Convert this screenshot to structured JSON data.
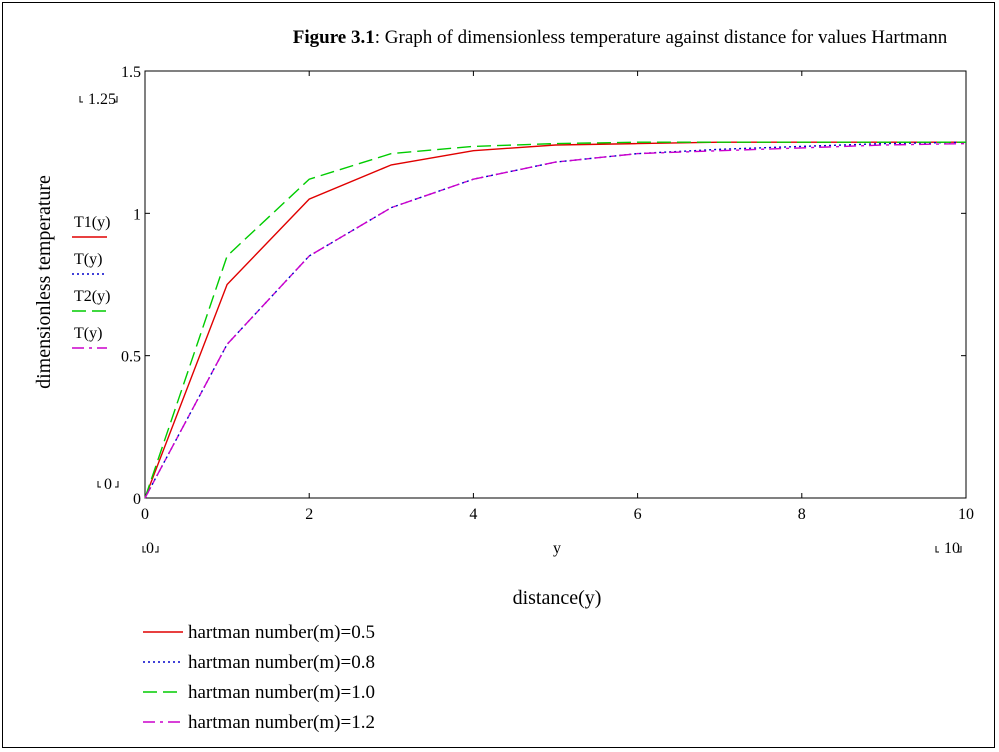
{
  "figure": {
    "caption_bold": "Figure 3.1",
    "caption_rest": ": Graph of dimensionless temperature against distance for values Hartmann"
  },
  "chart_data": {
    "type": "line",
    "title": "",
    "xlabel": "distance(y)",
    "ylabel": "dimensionless temperature",
    "x_variable_label": "y",
    "xlim": [
      0,
      10
    ],
    "ylim": [
      0,
      1.5
    ],
    "xticks": [
      "0",
      "2",
      "4",
      "6",
      "8",
      "10"
    ],
    "yticks": [
      "0",
      "0.5",
      "1",
      "1.5"
    ],
    "x_range_markers": [
      "0",
      "10"
    ],
    "y_range_markers": [
      "0",
      "1.25"
    ],
    "grid": false,
    "legend_position": "bottom-left",
    "series": [
      {
        "name": "hartman number(m)=0.5",
        "trace_label": "T1(y)",
        "color": "#e00000",
        "dash": "solid",
        "x": [
          0,
          1,
          2,
          3,
          4,
          5,
          6,
          7,
          8,
          9,
          10
        ],
        "y": [
          0,
          0.75,
          1.05,
          1.17,
          1.22,
          1.24,
          1.245,
          1.25,
          1.25,
          1.25,
          1.25
        ]
      },
      {
        "name": "hartman number(m)=0.8",
        "trace_label": "T(y)",
        "color": "#0000cc",
        "dash": "dot",
        "x": [
          0,
          1,
          2,
          3,
          4,
          5,
          6,
          7,
          8,
          9,
          10
        ],
        "y": [
          0,
          0.54,
          0.85,
          1.02,
          1.12,
          1.18,
          1.21,
          1.225,
          1.235,
          1.245,
          1.25
        ]
      },
      {
        "name": "hartman number(m)=1.0",
        "trace_label": "T2(y)",
        "color": "#00cc00",
        "dash": "dash",
        "x": [
          0,
          1,
          2,
          3,
          4,
          5,
          6,
          7,
          8,
          9,
          10
        ],
        "y": [
          0,
          0.85,
          1.12,
          1.21,
          1.235,
          1.245,
          1.25,
          1.25,
          1.25,
          1.25,
          1.25
        ]
      },
      {
        "name": "hartman number(m)=1.2",
        "trace_label": "T(y)",
        "color": "#cc00cc",
        "dash": "dashdot",
        "x": [
          0,
          1,
          2,
          3,
          4,
          5,
          6,
          7,
          8,
          9,
          10
        ],
        "y": [
          0,
          0.54,
          0.85,
          1.02,
          1.12,
          1.18,
          1.21,
          1.22,
          1.23,
          1.24,
          1.245
        ]
      }
    ]
  }
}
